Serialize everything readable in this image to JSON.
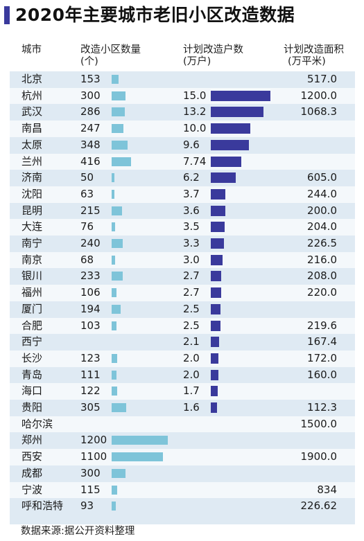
{
  "title": "2020年主要城市老旧小区改造数据",
  "colors": {
    "accent": "#3a3a9c",
    "count_bar": "#7ec4d9",
    "household_bar": "#3a3a9c",
    "panel_bg": "#dfeaf3"
  },
  "headers": {
    "city": "城市",
    "count": "改造小区数量",
    "count_unit": "(个)",
    "households": "计划改造户数",
    "households_unit": "(万户)",
    "area": "计划改造面积",
    "area_unit": "(万平米)"
  },
  "source": "数据来源:据公开资料整理",
  "chart_data": {
    "type": "table",
    "title": "2020年主要城市老旧小区改造数据",
    "columns": [
      "城市",
      "改造小区数量(个)",
      "计划改造户数(万户)",
      "计划改造面积(万平米)"
    ],
    "rows": [
      {
        "city": "北京",
        "count": "153",
        "households": "",
        "area": "517.0"
      },
      {
        "city": "杭州",
        "count": "300",
        "households": "15.0",
        "area": "1200.0"
      },
      {
        "city": "武汉",
        "count": "286",
        "households": "13.2",
        "area": "1068.3"
      },
      {
        "city": "南昌",
        "count": "247",
        "households": "10.0",
        "area": ""
      },
      {
        "city": "太原",
        "count": "348",
        "households": "9.6",
        "area": ""
      },
      {
        "city": "兰州",
        "count": "416",
        "households": "7.74",
        "area": ""
      },
      {
        "city": "济南",
        "count": "50",
        "households": "6.2",
        "area": "605.0"
      },
      {
        "city": "沈阳",
        "count": "63",
        "households": "3.7",
        "area": "244.0"
      },
      {
        "city": "昆明",
        "count": "215",
        "households": "3.6",
        "area": "200.0"
      },
      {
        "city": "大连",
        "count": "76",
        "households": "3.5",
        "area": "204.0"
      },
      {
        "city": "南宁",
        "count": "240",
        "households": "3.3",
        "area": "226.5"
      },
      {
        "city": "南京",
        "count": "68",
        "households": "3.0",
        "area": "216.0"
      },
      {
        "city": "银川",
        "count": "233",
        "households": "2.7",
        "area": "208.0"
      },
      {
        "city": "福州",
        "count": "106",
        "households": "2.7",
        "area": "220.0"
      },
      {
        "city": "厦门",
        "count": "194",
        "households": "2.5",
        "area": ""
      },
      {
        "city": "合肥",
        "count": "103",
        "households": "2.5",
        "area": "219.6"
      },
      {
        "city": "西宁",
        "count": "",
        "households": "2.1",
        "area": "167.4"
      },
      {
        "city": "长沙",
        "count": "123",
        "households": "2.0",
        "area": "172.0"
      },
      {
        "city": "青岛",
        "count": "111",
        "households": "2.0",
        "area": "160.0"
      },
      {
        "city": "海口",
        "count": "122",
        "households": "1.7",
        "area": ""
      },
      {
        "city": "贵阳",
        "count": "305",
        "households": "1.6",
        "area": "112.3"
      },
      {
        "city": "哈尔滨",
        "count": "",
        "households": "",
        "area": "1500.0"
      },
      {
        "city": "郑州",
        "count": "1200",
        "households": "",
        "area": ""
      },
      {
        "city": "西安",
        "count": "1100",
        "households": "",
        "area": "1900.0"
      },
      {
        "city": "成都",
        "count": "300",
        "households": "",
        "area": ""
      },
      {
        "city": "宁波",
        "count": "115",
        "households": "",
        "area": "834"
      },
      {
        "city": "呼和浩特",
        "count": "93",
        "households": "",
        "area": "226.62"
      }
    ],
    "count_bar_max": 1200,
    "households_bar_max": 15.0
  }
}
